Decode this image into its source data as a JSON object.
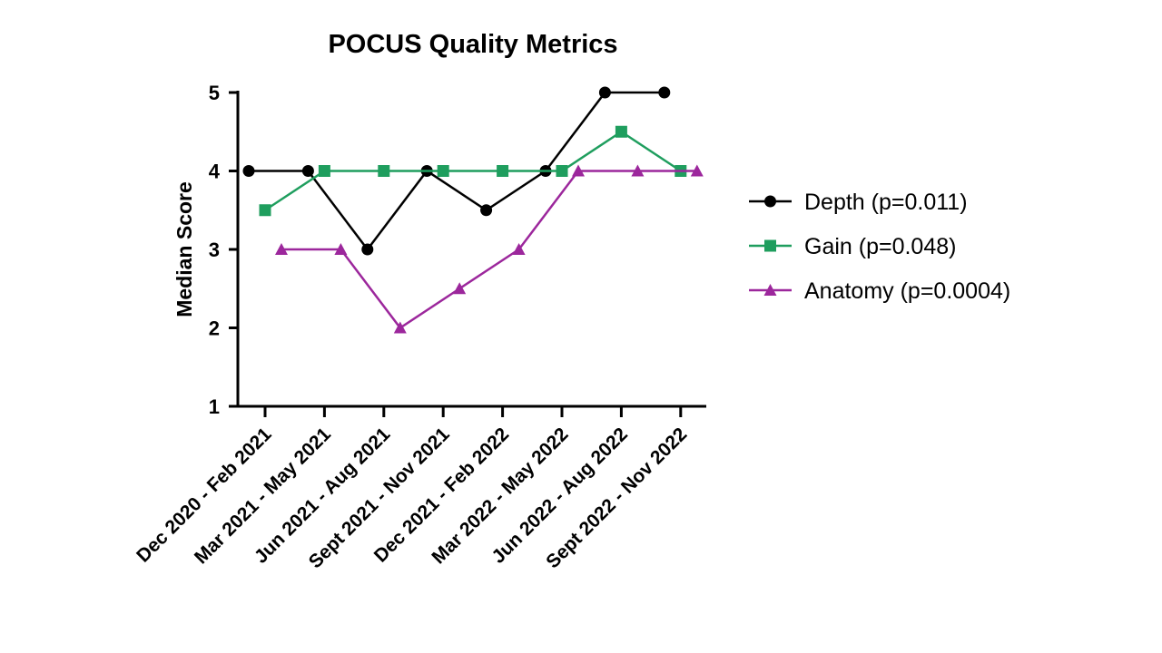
{
  "chart_data": {
    "type": "line",
    "title": "POCUS Quality Metrics",
    "ylabel": "Median Score",
    "xlabel": "",
    "ylim": [
      1,
      5
    ],
    "yticks": [
      1,
      2,
      3,
      4,
      5
    ],
    "categories": [
      "Dec 2020 - Feb 2021",
      "Mar 2021 - May 2021",
      "Jun 2021 - Aug 2021",
      "Sept 2021 - Nov 2021",
      "Dec 2021 - Feb 2022",
      "Mar 2022 - May 2022",
      "Jun 2022 - Aug 2022",
      "Sept 2022 - Nov 2022"
    ],
    "legend_position": "right",
    "grid": false,
    "series": [
      {
        "name": "Depth (p=0.011)",
        "color": "#000000",
        "marker": "circle",
        "values": [
          4,
          4,
          3,
          4,
          3.5,
          4,
          5,
          5
        ]
      },
      {
        "name": "Gain (p=0.048)",
        "color": "#1f9e5e",
        "marker": "square",
        "values": [
          3.5,
          4,
          4,
          4,
          4,
          4,
          4.5,
          4
        ]
      },
      {
        "name": "Anatomy (p=0.0004)",
        "color": "#9c279c",
        "marker": "triangle",
        "values": [
          3,
          3,
          2,
          2.5,
          3,
          4,
          4,
          4
        ]
      }
    ]
  }
}
